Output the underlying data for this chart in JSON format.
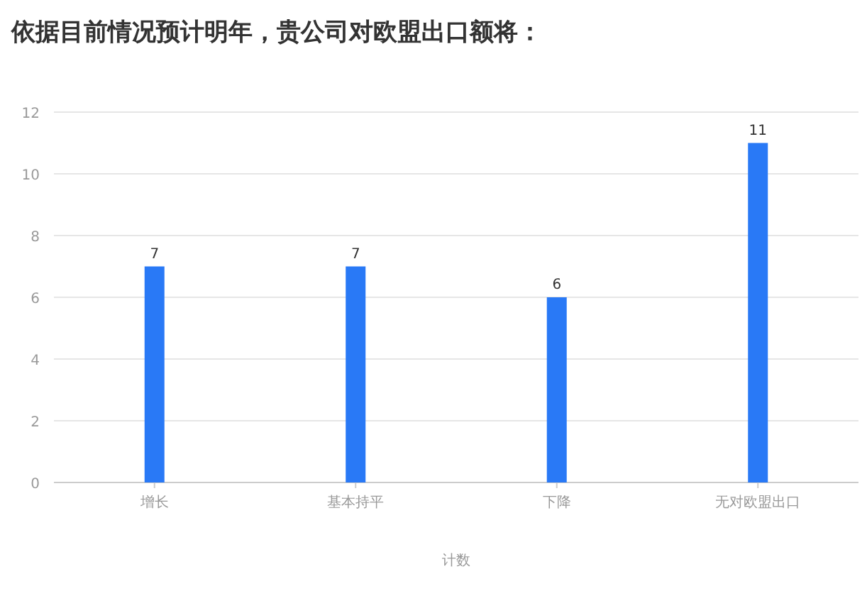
{
  "chart_data": {
    "type": "bar",
    "title": "依据目前情况预计明年，贵公司对欧盟出口额将：",
    "xlabel": "计数",
    "categories": [
      "增长",
      "基本持平",
      "下降",
      "无对欧盟出口"
    ],
    "values": [
      7,
      7,
      6,
      11
    ],
    "color": "#2979f6",
    "ylim": [
      0,
      12
    ],
    "yticks": [
      0,
      2,
      4,
      6,
      8,
      10,
      12
    ],
    "grid": "y",
    "data_labels": true
  }
}
